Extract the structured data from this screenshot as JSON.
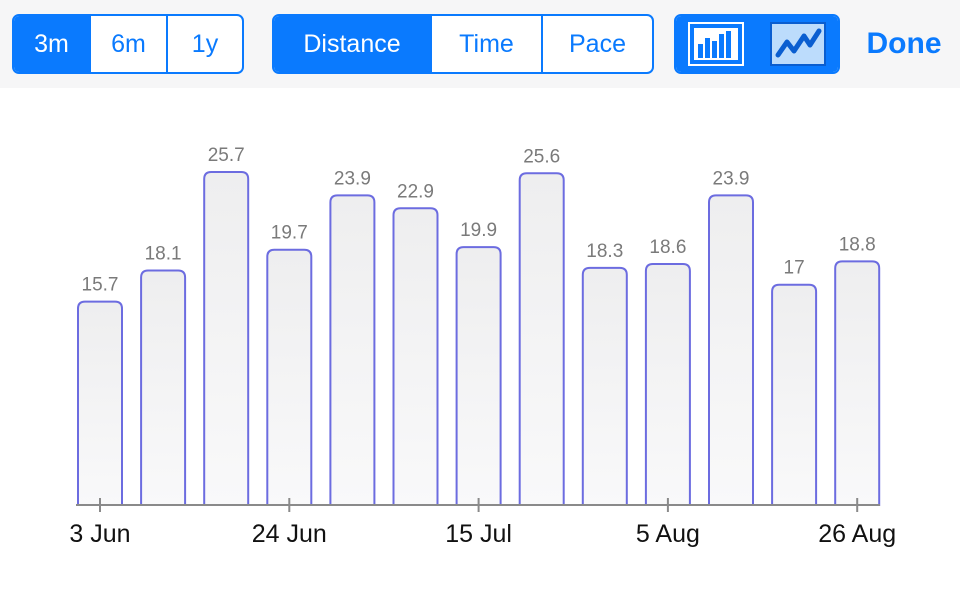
{
  "toolbar": {
    "range": [
      "3m",
      "6m",
      "1y"
    ],
    "range_selected": "3m",
    "metric": [
      "Distance",
      "Time",
      "Pace"
    ],
    "metric_selected": "Distance",
    "chart_type": [
      "bar-chart-icon",
      "line-chart-icon"
    ],
    "chart_type_selected": "bar-chart-icon",
    "done_label": "Done"
  },
  "colors": {
    "accent": "#0a7afe",
    "bar_stroke": "#6c6ce0",
    "bar_fill_top": "#eeeeef",
    "bar_fill_bottom": "#f9f9fa",
    "value_label": "#7a7a7a"
  },
  "chart_data": {
    "type": "bar",
    "title": "",
    "xlabel": "",
    "ylabel": "",
    "tick_labels": [
      "3 Jun",
      "24 Jun",
      "15 Jul",
      "5 Aug",
      "26 Aug"
    ],
    "tick_bar_positions": [
      0,
      3,
      6,
      9,
      12
    ],
    "values": [
      15.7,
      18.1,
      25.7,
      19.7,
      23.9,
      22.9,
      19.9,
      25.6,
      18.3,
      18.6,
      23.9,
      17,
      18.8
    ],
    "ylim": [
      0,
      25.7
    ],
    "grid": false
  }
}
